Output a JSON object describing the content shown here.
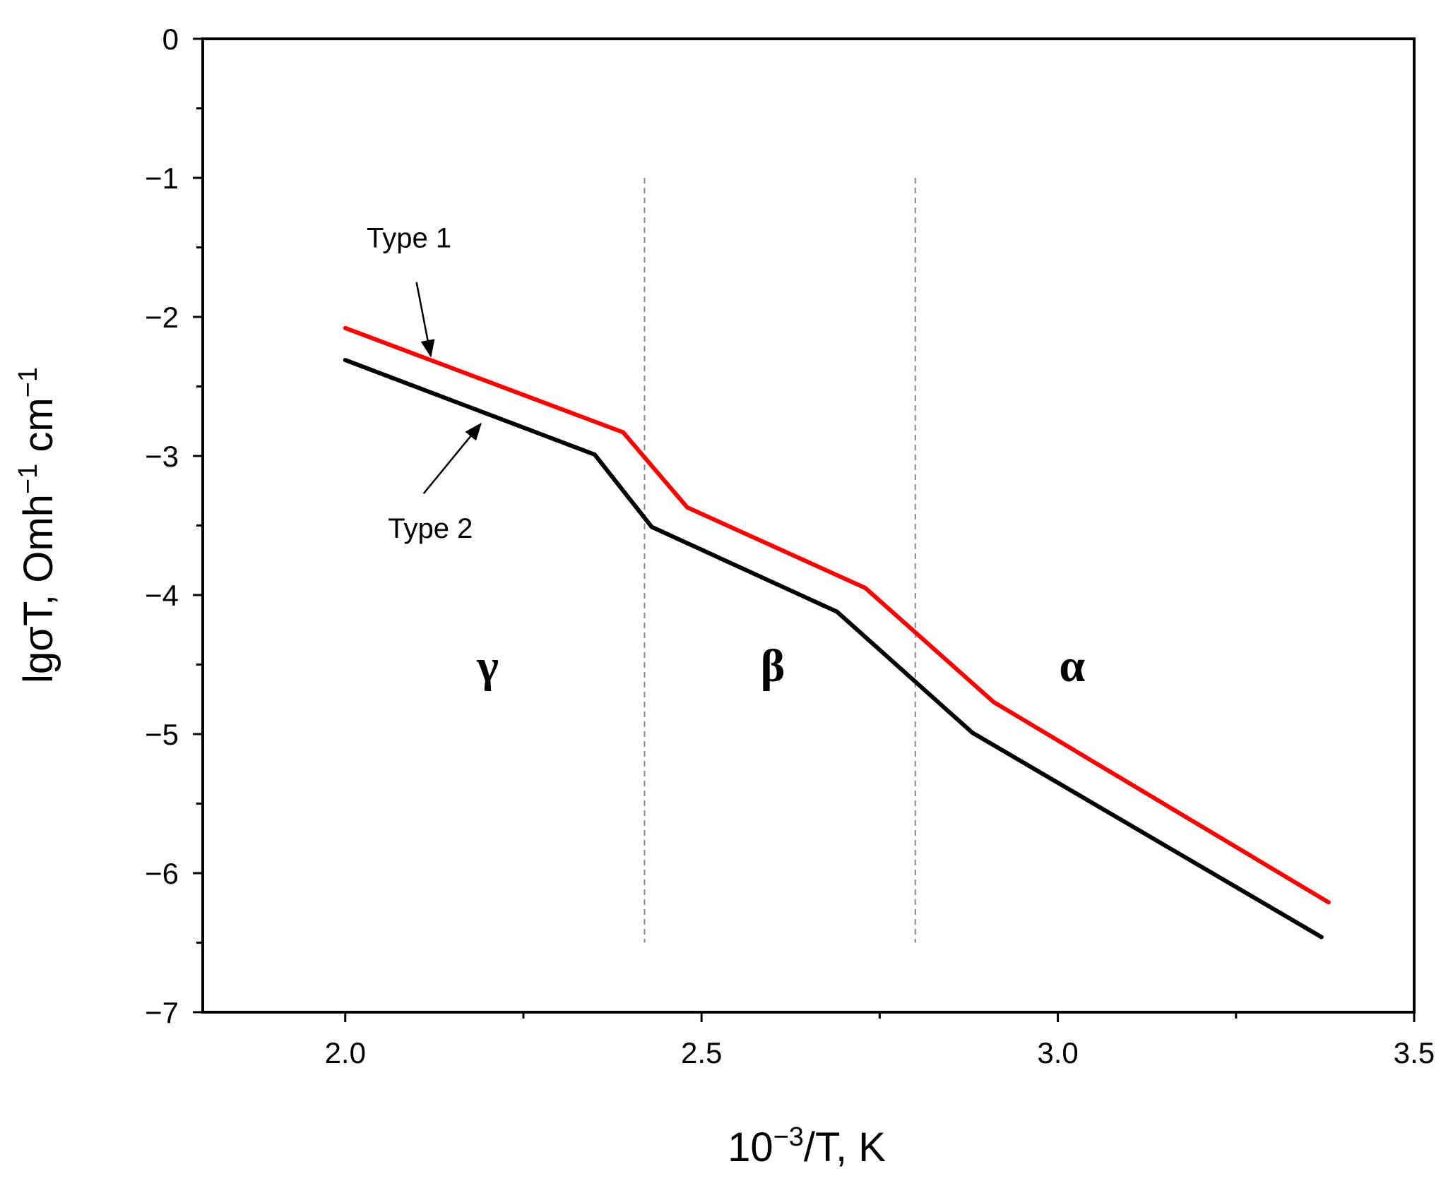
{
  "chart_data": {
    "type": "line",
    "title": "",
    "xlabel": "10",
    "xlabel_sup": "−3",
    "xlabel_tail": "/T, K",
    "ylabel": "lgσT, Omh",
    "ylabel_sup1": "−1",
    "ylabel_mid": " cm",
    "ylabel_sup2": "−1",
    "xlim": [
      1.8,
      3.5
    ],
    "ylim": [
      -7,
      0
    ],
    "x_ticks": [
      2.0,
      2.5,
      3.0,
      3.5
    ],
    "x_tick_labels": [
      "2.0",
      "2.5",
      "3.0",
      "3.5"
    ],
    "x_minor_ticks": [
      2.25,
      2.75,
      3.25
    ],
    "y_ticks": [
      0,
      -1,
      -2,
      -3,
      -4,
      -5,
      -6,
      -7
    ],
    "y_tick_labels": [
      "0",
      "−1",
      "−2",
      "−3",
      "−4",
      "−5",
      "−6",
      "−7"
    ],
    "y_minor_ticks": [
      -0.5,
      -1.5,
      -2.5,
      -3.5,
      -4.5,
      -5.5,
      -6.5
    ],
    "grid": false,
    "series": [
      {
        "name": "Type 1",
        "color": "#ff0000",
        "x": [
          2.0,
          2.39,
          2.48,
          2.73,
          2.91,
          3.38
        ],
        "y": [
          -2.08,
          -2.83,
          -3.37,
          -3.95,
          -4.77,
          -6.21
        ]
      },
      {
        "name": "Type 2",
        "color": "#000000",
        "x": [
          2.0,
          2.35,
          2.43,
          2.69,
          2.88,
          3.37
        ],
        "y": [
          -2.31,
          -2.99,
          -3.51,
          -4.12,
          -4.99,
          -6.46
        ]
      }
    ],
    "phase_boundaries": [
      {
        "x": 2.42,
        "y_from": -1,
        "y_to": -6.5,
        "color": "#888888"
      },
      {
        "x": 2.8,
        "y_from": -1,
        "y_to": -6.5,
        "color": "#888888"
      }
    ],
    "regions": [
      {
        "label": "γ",
        "x": 2.2,
        "y": -4.62
      },
      {
        "label": "β",
        "x": 2.6,
        "y": -4.62
      },
      {
        "label": "α",
        "x": 3.02,
        "y": -4.62
      }
    ],
    "annotations": [
      {
        "text": "Type 1",
        "text_x": 2.03,
        "text_y": -1.5,
        "arrow_from": [
          2.1,
          -1.75
        ],
        "arrow_to": [
          2.12,
          -2.28
        ]
      },
      {
        "text": "Type 2",
        "text_x": 2.06,
        "text_y": -3.59,
        "arrow_from": [
          2.11,
          -3.27
        ],
        "arrow_to": [
          2.19,
          -2.77
        ]
      }
    ]
  }
}
